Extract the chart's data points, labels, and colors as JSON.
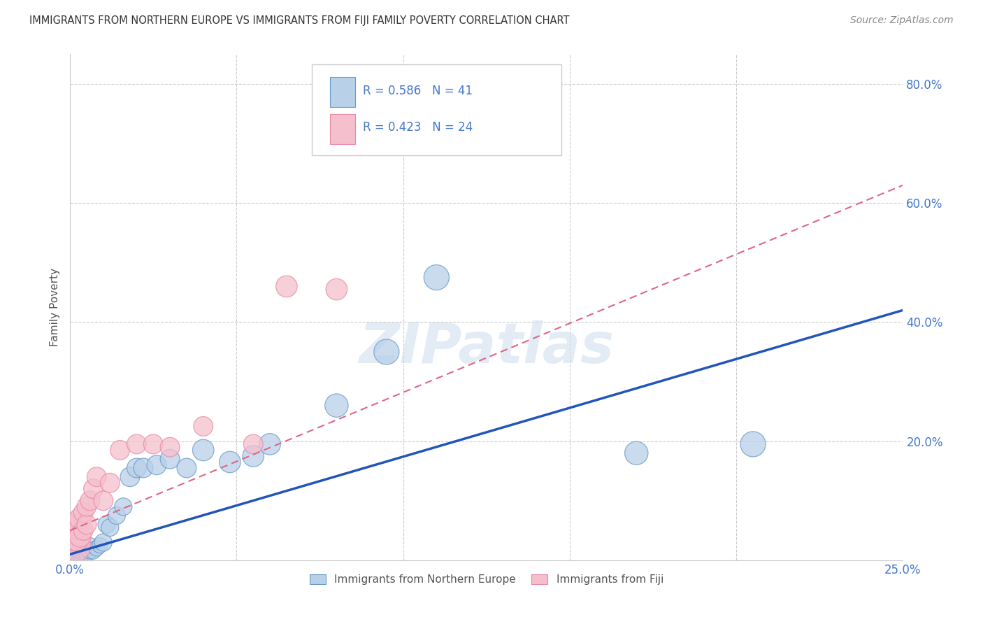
{
  "title": "IMMIGRANTS FROM NORTHERN EUROPE VS IMMIGRANTS FROM FIJI FAMILY POVERTY CORRELATION CHART",
  "source": "Source: ZipAtlas.com",
  "ylabel": "Family Poverty",
  "xlim": [
    0.0,
    0.25
  ],
  "ylim": [
    0.0,
    0.85
  ],
  "xticks": [
    0.0,
    0.05,
    0.1,
    0.15,
    0.2,
    0.25
  ],
  "xticklabels": [
    "0.0%",
    "",
    "",
    "",
    "",
    "25.0%"
  ],
  "yticks": [
    0.0,
    0.2,
    0.4,
    0.6,
    0.8
  ],
  "yticklabels": [
    "",
    "20.0%",
    "40.0%",
    "60.0%",
    "80.0%"
  ],
  "legend_R_blue": "R = 0.586",
  "legend_N_blue": "N = 41",
  "legend_R_pink": "R = 0.423",
  "legend_N_pink": "N = 24",
  "legend_label_blue": "Immigrants from Northern Europe",
  "legend_label_pink": "Immigrants from Fiji",
  "blue_color": "#b8d0e8",
  "pink_color": "#f5bfcd",
  "blue_edge_color": "#6699cc",
  "pink_edge_color": "#e888a8",
  "blue_line_color": "#2255bb",
  "pink_line_color": "#dd6688",
  "tick_color": "#4477cc",
  "grid_color": "#cccccc",
  "watermark_text": "ZIPatlas",
  "blue_x": [
    0.001,
    0.001,
    0.001,
    0.002,
    0.002,
    0.002,
    0.002,
    0.003,
    0.003,
    0.003,
    0.003,
    0.004,
    0.004,
    0.004,
    0.005,
    0.005,
    0.006,
    0.006,
    0.007,
    0.008,
    0.009,
    0.01,
    0.011,
    0.012,
    0.014,
    0.016,
    0.018,
    0.02,
    0.022,
    0.026,
    0.03,
    0.035,
    0.04,
    0.048,
    0.055,
    0.06,
    0.08,
    0.095,
    0.11,
    0.17,
    0.205
  ],
  "blue_y": [
    0.01,
    0.015,
    0.02,
    0.008,
    0.012,
    0.018,
    0.025,
    0.01,
    0.015,
    0.02,
    0.035,
    0.012,
    0.018,
    0.025,
    0.01,
    0.018,
    0.015,
    0.025,
    0.015,
    0.02,
    0.025,
    0.03,
    0.06,
    0.055,
    0.075,
    0.09,
    0.14,
    0.155,
    0.155,
    0.16,
    0.17,
    0.155,
    0.185,
    0.165,
    0.175,
    0.195,
    0.26,
    0.35,
    0.475,
    0.18,
    0.195
  ],
  "blue_sizes": [
    8,
    8,
    8,
    8,
    8,
    8,
    8,
    8,
    8,
    8,
    8,
    8,
    8,
    8,
    8,
    8,
    8,
    8,
    8,
    8,
    8,
    9,
    9,
    9,
    9,
    9,
    10,
    10,
    10,
    10,
    10,
    10,
    11,
    11,
    11,
    11,
    12,
    13,
    13,
    12,
    13
  ],
  "pink_x": [
    0.001,
    0.001,
    0.001,
    0.002,
    0.002,
    0.003,
    0.003,
    0.004,
    0.004,
    0.005,
    0.005,
    0.006,
    0.007,
    0.008,
    0.01,
    0.012,
    0.015,
    0.02,
    0.025,
    0.03,
    0.04,
    0.055,
    0.065,
    0.08
  ],
  "pink_y": [
    0.025,
    0.04,
    0.06,
    0.035,
    0.055,
    0.04,
    0.07,
    0.05,
    0.08,
    0.06,
    0.09,
    0.1,
    0.12,
    0.14,
    0.1,
    0.13,
    0.185,
    0.195,
    0.195,
    0.19,
    0.225,
    0.195,
    0.46,
    0.455
  ],
  "pink_sizes": [
    18,
    14,
    12,
    12,
    12,
    11,
    11,
    10,
    10,
    10,
    10,
    10,
    10,
    10,
    10,
    10,
    10,
    10,
    10,
    10,
    10,
    10,
    11,
    11
  ],
  "blue_line_x0": 0.0,
  "blue_line_y0": 0.01,
  "blue_line_x1": 0.25,
  "blue_line_y1": 0.42,
  "pink_line_x0": 0.0,
  "pink_line_y0": 0.05,
  "pink_line_x1": 0.25,
  "pink_line_y1": 0.63
}
